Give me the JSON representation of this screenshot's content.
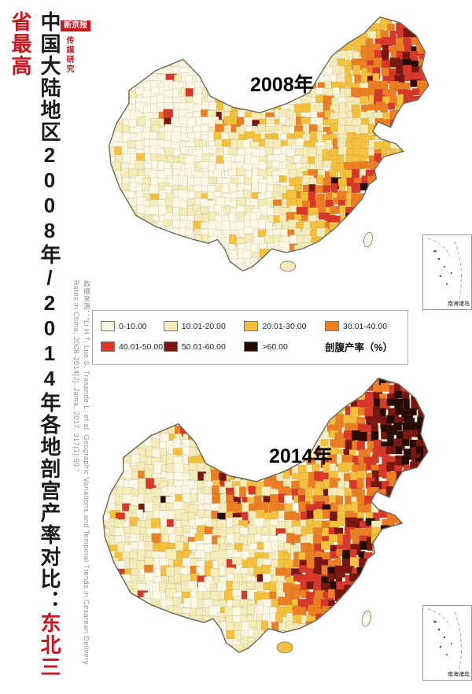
{
  "title": {
    "main": "中国大陆地区2008年/2014年各地剖宫产率对比：",
    "highlight": "东北三省最高",
    "highlight_color": "#C8161E"
  },
  "badge": {
    "label": "新京报",
    "sub": "传媒研究",
    "color": "#C8161E"
  },
  "source": "数据来源：“Li H T, Luo S, Trasande L, et al. Geographic Variations and Temporal Trends in Cesarean Delivery Rates in China, 2008-2014[J]. Jama, 2017, 317(1):69.”",
  "maps": [
    {
      "year_label": "2008年"
    },
    {
      "year_label": "2014年"
    }
  ],
  "inset_label": "南海诸岛",
  "legend": {
    "title": "剖腹产率（%）",
    "items": [
      {
        "range": "0-10.00",
        "color": "#FCF8E3"
      },
      {
        "range": "10.01-20.00",
        "color": "#F5ECB8"
      },
      {
        "range": "20.01-30.00",
        "color": "#F5C13D"
      },
      {
        "range": "30.01-40.00",
        "color": "#EE7E23"
      },
      {
        "range": "40.01-50.00",
        "color": "#D8372A"
      },
      {
        "range": "50.01-60.00",
        "color": "#7A160F"
      },
      {
        "range": ">60.00",
        "color": "#260B04"
      }
    ]
  }
}
